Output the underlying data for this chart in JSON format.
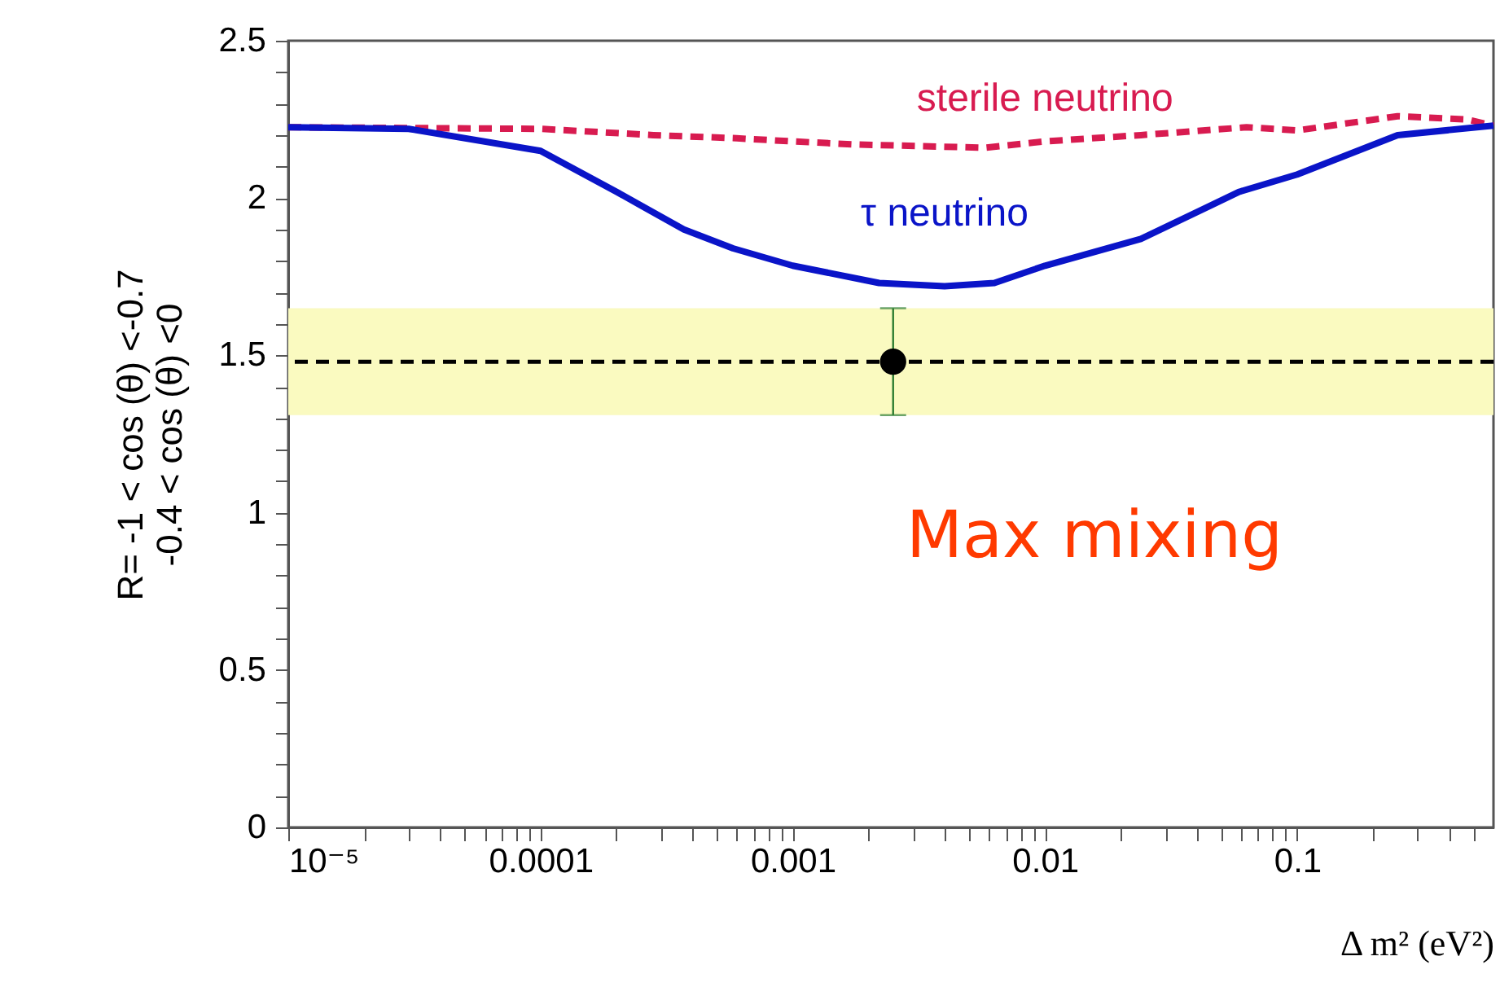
{
  "chart_data": {
    "type": "line",
    "xlabel": "Δ  m² (eV²)",
    "ylabel": "R= -1 < cos (θ) <-0.7\n-0.4 < cos (θ) <0",
    "log": "x",
    "xlim": [
      1e-05,
      0.6
    ],
    "ylim": [
      0,
      2.5
    ],
    "xticks": [
      {
        "value": 1e-05,
        "label": "10⁻⁵"
      },
      {
        "value": 2e-05,
        "label": null
      },
      {
        "value": 3e-05,
        "label": null
      },
      {
        "value": 4e-05,
        "label": null
      },
      {
        "value": 5e-05,
        "label": null
      },
      {
        "value": 6e-05,
        "label": null
      },
      {
        "value": 7e-05,
        "label": null
      },
      {
        "value": 8e-05,
        "label": null
      },
      {
        "value": 9e-05,
        "label": null
      },
      0.0001,
      {
        "value": 0.0002,
        "label": null
      },
      {
        "value": 0.0003,
        "label": null
      },
      {
        "value": 0.0004,
        "label": null
      },
      {
        "value": 0.0005,
        "label": null
      },
      {
        "value": 0.0006,
        "label": null
      },
      {
        "value": 0.0007,
        "label": null
      },
      {
        "value": 0.0008,
        "label": null
      },
      {
        "value": 0.0009,
        "label": null
      },
      0.001,
      {
        "value": 0.002,
        "label": null
      },
      {
        "value": 0.003,
        "label": null
      },
      {
        "value": 0.004,
        "label": null
      },
      {
        "value": 0.005,
        "label": null
      },
      {
        "value": 0.006,
        "label": null
      },
      {
        "value": 0.007,
        "label": null
      },
      {
        "value": 0.008,
        "label": null
      },
      {
        "value": 0.009,
        "label": null
      },
      0.01,
      {
        "value": 0.02,
        "label": null
      },
      {
        "value": 0.03,
        "label": null
      },
      {
        "value": 0.04,
        "label": null
      },
      {
        "value": 0.05,
        "label": null
      },
      {
        "value": 0.06,
        "label": null
      },
      {
        "value": 0.07,
        "label": null
      },
      {
        "value": 0.08,
        "label": null
      },
      {
        "value": 0.09,
        "label": null
      },
      0.1,
      {
        "value": 0.2,
        "label": null
      },
      {
        "value": 0.3,
        "label": null
      },
      {
        "value": 0.4,
        "label": null
      },
      {
        "value": 0.5,
        "label": null
      }
    ],
    "yticks": [
      0,
      {
        "value": 0.1,
        "label": null
      },
      {
        "value": 0.2,
        "label": null
      },
      {
        "value": 0.3,
        "label": null
      },
      {
        "value": 0.4,
        "label": null
      },
      0.5,
      {
        "value": 0.6,
        "label": null
      },
      {
        "value": 0.7,
        "label": null
      },
      {
        "value": 0.8,
        "label": null
      },
      {
        "value": 0.9,
        "label": null
      },
      1,
      {
        "value": 1.1,
        "label": null
      },
      {
        "value": 1.2,
        "label": null
      },
      {
        "value": 1.3,
        "label": null
      },
      {
        "value": 1.4,
        "label": null
      },
      1.5,
      {
        "value": 1.6,
        "label": null
      },
      {
        "value": 1.7,
        "label": null
      },
      {
        "value": 1.8,
        "label": null
      },
      {
        "value": 1.9,
        "label": null
      },
      2,
      {
        "value": 2.1,
        "label": null
      },
      {
        "value": 2.2,
        "label": null
      },
      {
        "value": 2.3,
        "label": null
      },
      {
        "value": 2.4,
        "label": null
      },
      2.5
    ],
    "series": [
      {
        "name": "sterile neutrino",
        "color": "#d81b50",
        "line_style": "dashed",
        "x": [
          1e-05,
          0.0001,
          0.00028,
          0.0006,
          0.001,
          0.0018,
          0.0058,
          0.01,
          0.024,
          0.063,
          0.1,
          0.25,
          0.47,
          0.6
        ],
        "values": [
          2.225,
          2.22,
          2.2,
          2.19,
          2.18,
          2.17,
          2.16,
          2.18,
          2.2,
          2.225,
          2.215,
          2.26,
          2.25,
          2.23
        ]
      },
      {
        "name": "τ neutrino",
        "color": "#0a14c8",
        "line_style": "solid",
        "x": [
          1e-05,
          3e-05,
          0.0001,
          0.0002,
          0.00037,
          0.00058,
          0.001,
          0.0022,
          0.004,
          0.0063,
          0.01,
          0.024,
          0.059,
          0.1,
          0.25,
          0.6
        ],
        "values": [
          2.225,
          2.22,
          2.15,
          2.02,
          1.9,
          1.84,
          1.785,
          1.73,
          1.72,
          1.73,
          1.785,
          1.87,
          2.02,
          2.075,
          2.2,
          2.23
        ]
      },
      {
        "type": "scatter",
        "color": "#000000",
        "x": [
          0.0025
        ],
        "values": [
          1.48
        ],
        "errors": [
          [
            1.31,
            1.65
          ]
        ],
        "marker": "circle"
      }
    ],
    "bands": [
      {
        "axis": "y",
        "from": 1.31,
        "to": 1.65,
        "color": "#fafac0"
      }
    ],
    "ref_lines": [
      {
        "axis": "y",
        "value": 1.48,
        "color": "#000000",
        "line_style": "dashed"
      }
    ],
    "annotations": [
      "Max mixing"
    ],
    "grid": false,
    "legend": false
  }
}
